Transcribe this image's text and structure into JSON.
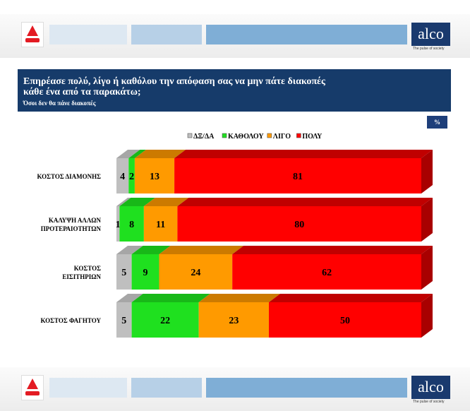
{
  "title_line1": "Επηρέασε πολύ, λίγο ή καθόλου την απόφαση σας να μην πάτε διακοπές",
  "title_line2": "κάθε ένα από τα παρακάτω;",
  "subtitle": "Όσοι δεν θα πάνε διακοπές",
  "unit": "%",
  "brand": {
    "alco": "alco",
    "tagline": "The pulse of society"
  },
  "colors": {
    "header": "#163b6a"
  },
  "chart_data": {
    "type": "bar",
    "orientation": "horizontal",
    "stacked": true,
    "three_d": true,
    "legend_position": "top",
    "categories": [
      [
        "ΚΟΣΤΟΣ ΔΙΑΜΟΝΗΣ"
      ],
      [
        "ΚΑΛΥΨΗ ΑΛΛΩΝ",
        "ΠΡΟΤΕΡΑΙΟΤΗΤΩΝ"
      ],
      [
        "ΚΟΣΤΟΣ",
        "ΕΙΣΙΤΗΡΙΩΝ"
      ],
      [
        "ΚΟΣΤΟΣ ΦΑΓΗΤΟΥ"
      ]
    ],
    "series": [
      {
        "name": "ΔΞ/ΔΑ",
        "color": "#bfbfbf",
        "top": "#a6a6a6",
        "side": "#8c8c8c",
        "values": [
          4,
          1,
          5,
          5
        ]
      },
      {
        "name": "ΚΑΘΟΛΟΥ",
        "color": "#1fe01f",
        "top": "#18b818",
        "side": "#149a14",
        "values": [
          2,
          8,
          9,
          22
        ]
      },
      {
        "name": "ΛΙΓΟ",
        "color": "#ff9a00",
        "top": "#cc7a00",
        "side": "#b36b00",
        "values": [
          13,
          11,
          24,
          23
        ]
      },
      {
        "name": "ΠΟΛΥ",
        "color": "#ff0000",
        "top": "#c00000",
        "side": "#a80000",
        "values": [
          81,
          80,
          62,
          50
        ]
      }
    ]
  }
}
